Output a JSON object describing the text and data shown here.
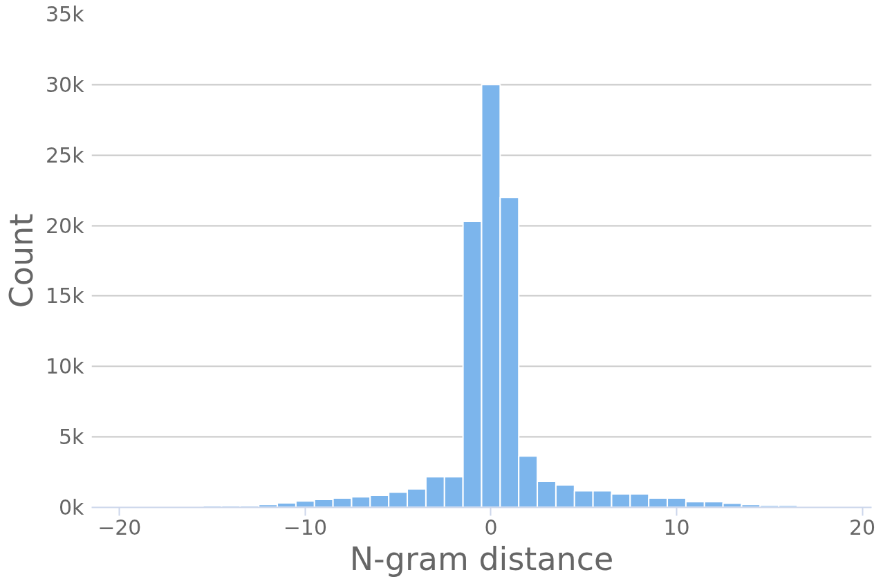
{
  "chart_data": {
    "type": "histogram",
    "xlabel": "N-gram distance",
    "ylabel": "Count",
    "color": "#7cb5ec",
    "bins": [
      -20.5,
      -19.5,
      -18.5,
      -17.5,
      -16.5,
      -15.5,
      -14.5,
      -13.5,
      -12.5,
      -11.5,
      -10.5,
      -9.5,
      -8.5,
      -7.5,
      -6.5,
      -5.5,
      -4.5,
      -3.5,
      -2.5,
      -1.5,
      -0.5,
      0.5,
      1.5,
      2.5,
      3.5,
      4.5,
      5.5,
      6.5,
      7.5,
      8.5,
      9.5,
      10.5,
      11.5,
      12.5,
      13.5,
      14.5,
      15.5,
      16.5,
      17.5,
      18.5,
      19.5,
      20.5
    ],
    "values": [
      30,
      30,
      30,
      30,
      30,
      120,
      120,
      120,
      210,
      320,
      450,
      570,
      660,
      750,
      860,
      1080,
      1310,
      2170,
      2170,
      20300,
      30000,
      22000,
      3650,
      1840,
      1590,
      1180,
      1180,
      960,
      960,
      660,
      660,
      410,
      410,
      300,
      210,
      150,
      150,
      30,
      30,
      30,
      30
    ],
    "xlim": [
      -21.5,
      20.5
    ],
    "xticks": [
      {
        "value": -20,
        "label": "−20"
      },
      {
        "value": -10,
        "label": "−10"
      },
      0,
      10,
      20
    ],
    "ylim": [
      0,
      35000
    ],
    "yticks": [
      {
        "value": 0,
        "label": "0k"
      },
      {
        "value": 5000,
        "label": "5k"
      },
      {
        "value": 10000,
        "label": "10k"
      },
      {
        "value": 15000,
        "label": "15k"
      },
      {
        "value": 20000,
        "label": "20k"
      },
      {
        "value": 25000,
        "label": "25k"
      },
      {
        "value": 30000,
        "label": "30k"
      },
      {
        "value": 35000,
        "label": "35k"
      }
    ],
    "grid": "y"
  }
}
